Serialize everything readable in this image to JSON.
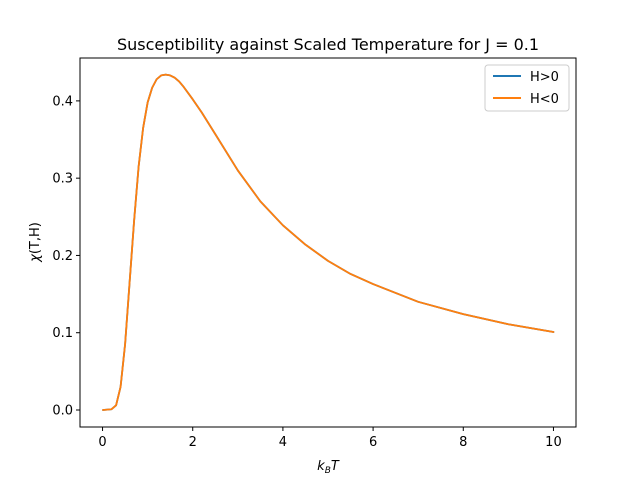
{
  "chart_data": {
    "type": "line",
    "title": "Susceptibility against Scaled Temperature for J = 0.1",
    "xlabel_base": "k",
    "xlabel_sub": "B",
    "xlabel_tail": "T",
    "ylabel_greek": "χ",
    "ylabel_tail": "(T,H)",
    "xlim": [
      -0.5,
      10.5
    ],
    "ylim": [
      -0.022,
      0.4555
    ],
    "xticks": [
      0,
      2,
      4,
      6,
      8,
      10
    ],
    "xtick_labels": [
      "0",
      "2",
      "4",
      "6",
      "8",
      "10"
    ],
    "yticks": [
      0.0,
      0.1,
      0.2,
      0.3,
      0.4
    ],
    "ytick_labels": [
      "0.0",
      "0.1",
      "0.2",
      "0.3",
      "0.4"
    ],
    "grid": false,
    "legend_position": "top-right",
    "series": [
      {
        "name": "H>0",
        "color": "#1f77b4",
        "x": [
          0.01,
          0.2,
          0.3,
          0.4,
          0.5,
          0.6,
          0.7,
          0.8,
          0.9,
          1.0,
          1.1,
          1.2,
          1.3,
          1.4,
          1.5,
          1.6,
          1.7,
          1.8,
          2.0,
          2.2,
          2.5,
          3.0,
          3.5,
          4.0,
          4.5,
          5.0,
          5.5,
          6.0,
          7.0,
          8.0,
          9.0,
          10.0
        ],
        "y": [
          0.0,
          0.001,
          0.006,
          0.03,
          0.085,
          0.165,
          0.245,
          0.315,
          0.365,
          0.398,
          0.417,
          0.428,
          0.433,
          0.434,
          0.433,
          0.43,
          0.425,
          0.418,
          0.402,
          0.385,
          0.357,
          0.31,
          0.27,
          0.239,
          0.214,
          0.193,
          0.176,
          0.163,
          0.14,
          0.124,
          0.111,
          0.101
        ]
      },
      {
        "name": "H<0",
        "color": "#ff7f0e",
        "x": [
          0.01,
          0.2,
          0.3,
          0.4,
          0.5,
          0.6,
          0.7,
          0.8,
          0.9,
          1.0,
          1.1,
          1.2,
          1.3,
          1.4,
          1.5,
          1.6,
          1.7,
          1.8,
          2.0,
          2.2,
          2.5,
          3.0,
          3.5,
          4.0,
          4.5,
          5.0,
          5.5,
          6.0,
          7.0,
          8.0,
          9.0,
          10.0
        ],
        "y": [
          0.0,
          0.001,
          0.006,
          0.03,
          0.085,
          0.165,
          0.245,
          0.315,
          0.365,
          0.398,
          0.417,
          0.428,
          0.433,
          0.434,
          0.433,
          0.43,
          0.425,
          0.418,
          0.402,
          0.385,
          0.357,
          0.31,
          0.27,
          0.239,
          0.214,
          0.193,
          0.176,
          0.163,
          0.14,
          0.124,
          0.111,
          0.101
        ]
      }
    ]
  }
}
